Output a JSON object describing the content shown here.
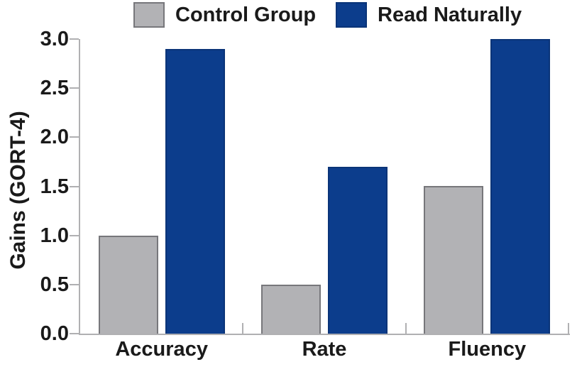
{
  "chart_data": {
    "type": "bar",
    "categories": [
      "Accuracy",
      "Rate",
      "Fluency"
    ],
    "series": [
      {
        "name": "Control Group",
        "color": "#b2b2b5",
        "border_color": "#77777b",
        "values": [
          1.0,
          0.5,
          1.5
        ]
      },
      {
        "name": "Read Naturally",
        "color": "#0c3d8c",
        "border_color": "#0a3478",
        "values": [
          2.9,
          1.7,
          3.0
        ]
      }
    ],
    "title": "",
    "xlabel": "",
    "ylabel": "Gains (GORT-4)",
    "ylim": [
      0,
      3.0
    ],
    "yticks": [
      0,
      0.5,
      1.0,
      1.5,
      2.0,
      2.5,
      3.0
    ],
    "ytick_labels": [
      "0.0",
      "0.5",
      "1.0",
      "1.5",
      "2.0",
      "2.5",
      "3.0"
    ],
    "legend_position": "top",
    "grid": false,
    "axis_color": "#b0b0b2",
    "text_color": "#1a1a1a",
    "background_color": "#ffffff"
  }
}
